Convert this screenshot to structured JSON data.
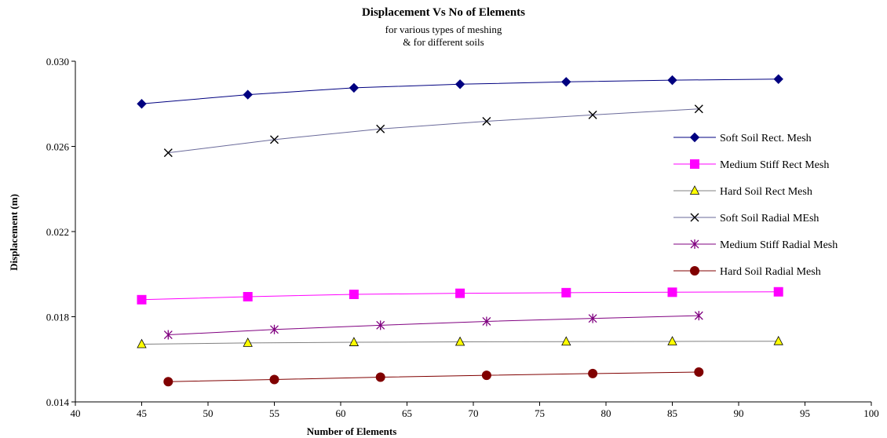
{
  "chart_data": {
    "type": "line",
    "title": "Displacement Vs No of Elements",
    "subtitle": [
      "for various types of meshing",
      "& for different soils"
    ],
    "xlabel": "Number of Elements",
    "ylabel": "Displacement (m)",
    "xlim": [
      40,
      100
    ],
    "ylim": [
      0.014,
      0.03
    ],
    "xticks": [
      "40",
      "45",
      "50",
      "55",
      "60",
      "65",
      "70",
      "75",
      "80",
      "85",
      "90",
      "95",
      "100"
    ],
    "yticks": [
      "0.014",
      "0.018",
      "0.022",
      "0.026",
      "0.030"
    ],
    "legend_position": "right",
    "grid": false,
    "series": [
      {
        "name": "Soft Soil Rect. Mesh",
        "marker": "diamond",
        "color": "#000080",
        "x": [
          45,
          53,
          61,
          69,
          77,
          85,
          93
        ],
        "y": [
          0.028,
          0.02843,
          0.02875,
          0.02892,
          0.02903,
          0.02911,
          0.02916
        ]
      },
      {
        "name": "Medium Stiff Rect Mesh",
        "marker": "square",
        "color": "#ff00ff",
        "x": [
          45,
          53,
          61,
          69,
          77,
          85,
          93
        ],
        "y": [
          0.0188,
          0.01894,
          0.01905,
          0.0191,
          0.01913,
          0.01915,
          0.01917
        ]
      },
      {
        "name": "Hard Soil Rect Mesh",
        "marker": "triangle",
        "color": "#808080",
        "fill": "#ffff00",
        "x": [
          45,
          53,
          61,
          69,
          77,
          85,
          93
        ],
        "y": [
          0.01671,
          0.01677,
          0.0168,
          0.01682,
          0.01683,
          0.01684,
          0.01685
        ]
      },
      {
        "name": "Soft Soil Radial MEsh",
        "marker": "x",
        "color": "#000000",
        "line": "#6a6a9a",
        "x": [
          47,
          55,
          63,
          71,
          79,
          87
        ],
        "y": [
          0.0257,
          0.02632,
          0.02682,
          0.02718,
          0.02748,
          0.02776
        ]
      },
      {
        "name": "Medium Stiff Radial Mesh",
        "marker": "star",
        "color": "#800080",
        "x": [
          47,
          55,
          63,
          71,
          79,
          87
        ],
        "y": [
          0.01715,
          0.0174,
          0.0176,
          0.01778,
          0.01792,
          0.01805
        ]
      },
      {
        "name": "Hard Soil Radial Mesh",
        "marker": "circle",
        "color": "#800000",
        "x": [
          47,
          55,
          63,
          71,
          79,
          87
        ],
        "y": [
          0.01495,
          0.01505,
          0.01516,
          0.01525,
          0.01533,
          0.0154
        ]
      }
    ]
  }
}
